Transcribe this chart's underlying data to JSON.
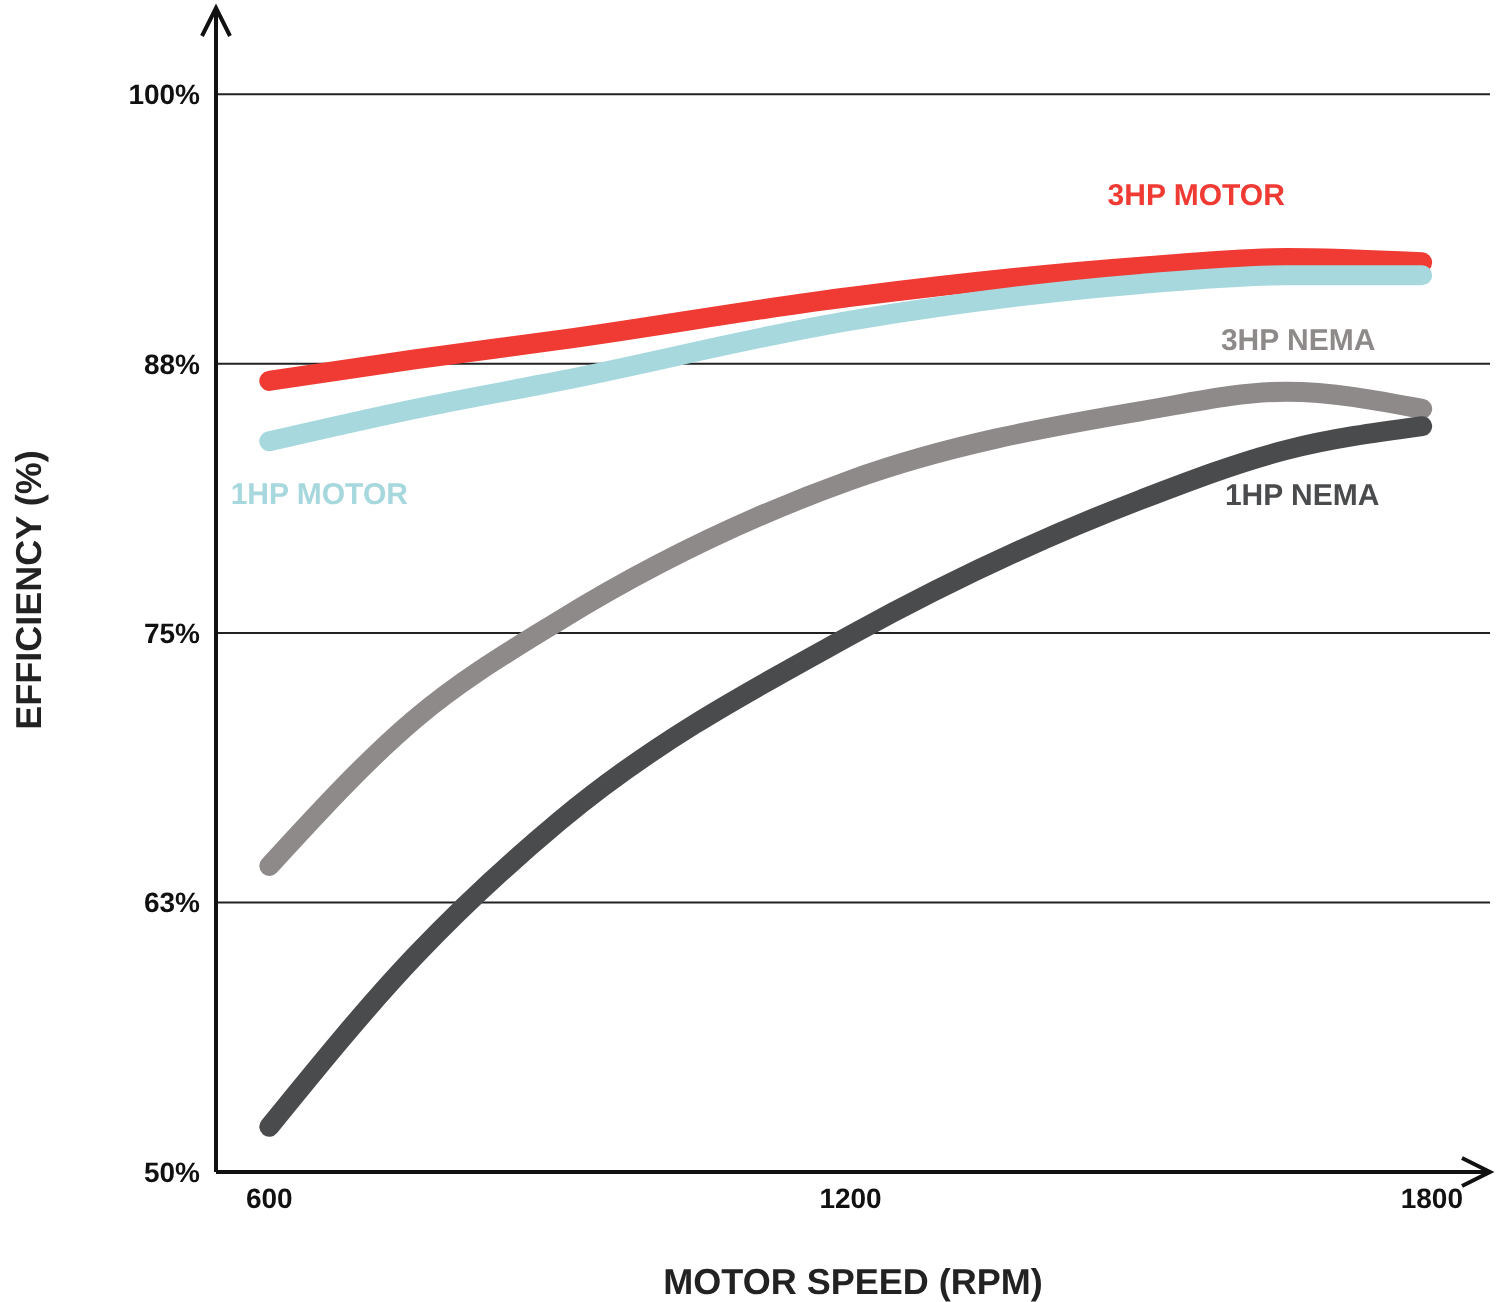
{
  "chart_data": {
    "type": "line",
    "xlabel": "MOTOR SPEED (RPM)",
    "ylabel": "EFFICIENCY (%)",
    "x": [
      600,
      750,
      900,
      1200,
      1500,
      1650,
      1790
    ],
    "xlim": [
      545,
      1860
    ],
    "xticks": [
      600,
      1200,
      1800
    ],
    "ylim": [
      50,
      104
    ],
    "yticks": [
      {
        "value": 50,
        "label": "50%"
      },
      {
        "value": 62.5,
        "label": "63%"
      },
      {
        "value": 75,
        "label": "75%"
      },
      {
        "value": 87.5,
        "label": "88%"
      },
      {
        "value": 100,
        "label": "100%"
      }
    ],
    "grid": "y",
    "marker": "none",
    "line_style": "solid",
    "legend": false,
    "series": [
      {
        "name": "3HP MOTOR",
        "color": "#ef3b33",
        "values": [
          86.7,
          87.7,
          88.6,
          90.6,
          92.0,
          92.4,
          92.2
        ]
      },
      {
        "name": "1HP MOTOR",
        "color": "#a6d8de",
        "values": [
          83.9,
          85.4,
          86.7,
          89.5,
          91.2,
          91.6,
          91.6
        ]
      },
      {
        "name": "3HP NEMA",
        "color": "#8e8a89",
        "values": [
          64.2,
          71.0,
          75.6,
          82.1,
          85.3,
          86.2,
          85.4
        ]
      },
      {
        "name": "1HP NEMA",
        "color": "#4a4b4d",
        "values": [
          52.1,
          60.0,
          66.3,
          74.9,
          81.2,
          83.5,
          84.6
        ]
      }
    ]
  }
}
